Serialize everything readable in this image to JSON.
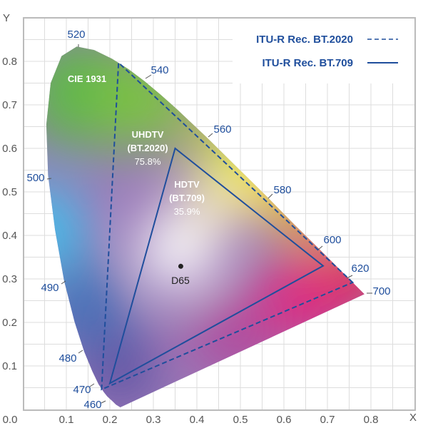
{
  "chart_data": {
    "type": "line",
    "title": "",
    "xlabel": "X",
    "ylabel": "Y",
    "xlim": [
      0,
      0.9
    ],
    "ylim": [
      0,
      0.94
    ],
    "grid": true,
    "x_ticks": [
      "0.0",
      "0.1",
      "0.2",
      "0.3",
      "0.4",
      "0.5",
      "0.6",
      "0.7",
      "0.8"
    ],
    "y_ticks": [
      "0.1",
      "0.2",
      "0.3",
      "0.4",
      "0.5",
      "0.6",
      "0.7",
      "0.8"
    ],
    "legend_position": "top-right",
    "legend": [
      {
        "label": "ITU-R Rec. BT.2020",
        "style": "dashed"
      },
      {
        "label": "ITU-R Rec. BT.709",
        "style": "solid"
      }
    ],
    "spectral_locus": [
      [
        0.224,
        0.005
      ],
      [
        0.214,
        0.011
      ],
      [
        0.207,
        0.018
      ],
      [
        0.194,
        0.03
      ],
      [
        0.186,
        0.04
      ],
      [
        0.174,
        0.058
      ],
      [
        0.16,
        0.087
      ],
      [
        0.141,
        0.133
      ],
      [
        0.119,
        0.201
      ],
      [
        0.095,
        0.295
      ],
      [
        0.074,
        0.413
      ],
      [
        0.058,
        0.538
      ],
      [
        0.054,
        0.655
      ],
      [
        0.064,
        0.75
      ],
      [
        0.089,
        0.812
      ],
      [
        0.124,
        0.834
      ],
      [
        0.164,
        0.826
      ],
      [
        0.205,
        0.806
      ],
      [
        0.243,
        0.782
      ],
      [
        0.28,
        0.754
      ],
      [
        0.316,
        0.724
      ],
      [
        0.352,
        0.692
      ],
      [
        0.387,
        0.659
      ],
      [
        0.423,
        0.625
      ],
      [
        0.494,
        0.555
      ],
      [
        0.563,
        0.487
      ],
      [
        0.625,
        0.424
      ],
      [
        0.677,
        0.373
      ],
      [
        0.716,
        0.334
      ],
      [
        0.742,
        0.308
      ],
      [
        0.758,
        0.292
      ],
      [
        0.769,
        0.281
      ],
      [
        0.776,
        0.274
      ],
      [
        0.785,
        0.265
      ]
    ],
    "wavelength_labels": [
      "520",
      "540",
      "560",
      "580",
      "600",
      "620",
      "700",
      "500",
      "490",
      "480",
      "470",
      "460"
    ],
    "series": [
      {
        "name": "ITU-R Rec. BT.2020",
        "x": [
          0.758,
          0.22,
          0.181
        ],
        "y": [
          0.292,
          0.797,
          0.046
        ],
        "color": "#1f4e9c",
        "style": "dashed"
      },
      {
        "name": "ITU-R Rec. BT.709",
        "x": [
          0.69,
          0.35,
          0.2
        ],
        "y": [
          0.33,
          0.6,
          0.06
        ],
        "color": "#1f4e9c",
        "style": "solid"
      }
    ],
    "points": [
      {
        "name": "D65",
        "x": 0.363,
        "y": 0.329
      }
    ],
    "annotations": {
      "cie": "CIE 1931",
      "uhdtv": "UHDTV",
      "uhdtv_std": "(BT.2020)",
      "uhdtv_pct": "75.8%",
      "hdtv": "HDTV",
      "hdtv_std": "(BT.709)",
      "hdtv_pct": "35.9%",
      "d65": "D65"
    }
  },
  "colors": {
    "accent": "#1f4e9c",
    "grid": "#dddddd",
    "frame": "#bbbbbb"
  }
}
